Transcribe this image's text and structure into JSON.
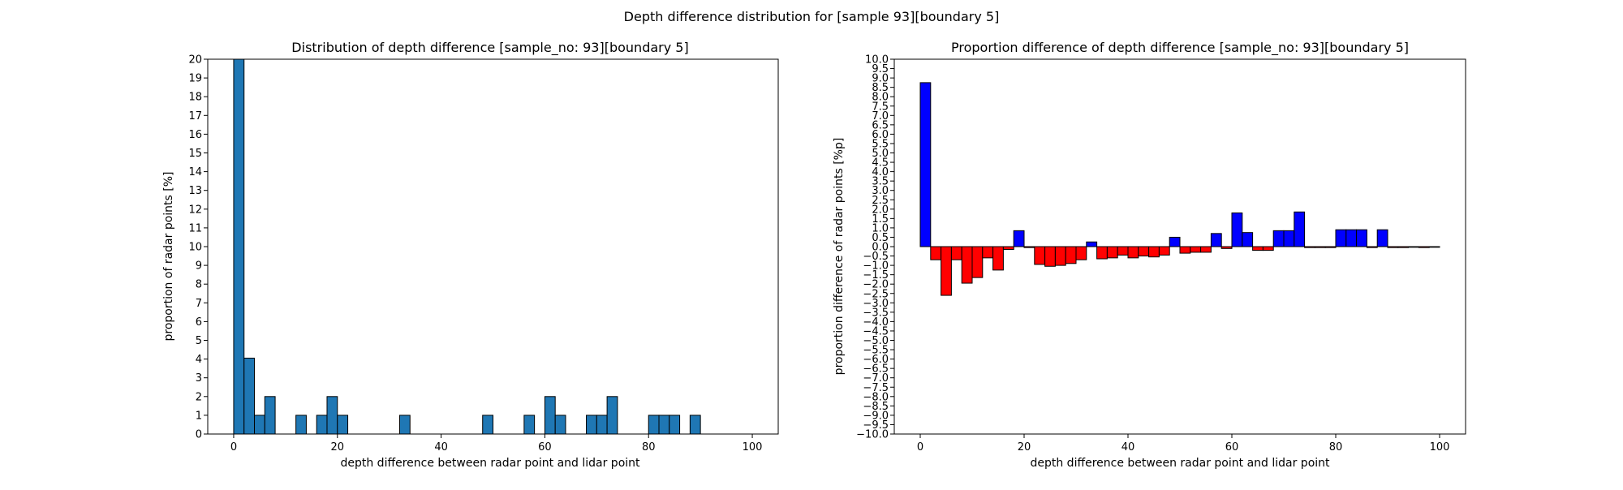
{
  "figure": {
    "suptitle": "Depth difference distribution for [sample 93][boundary 5]"
  },
  "chart_data": [
    {
      "type": "bar",
      "title": "Distribution of depth difference [sample_no: 93][boundary 5]",
      "xlabel": "depth difference between radar point and lidar point",
      "ylabel": "proportion of radar points [%]",
      "xlim": [
        -5,
        105
      ],
      "ylim": [
        0,
        20
      ],
      "xticks": [
        0,
        20,
        40,
        60,
        80,
        100
      ],
      "yticks": [
        0,
        1,
        2,
        3,
        4,
        5,
        6,
        7,
        8,
        9,
        10,
        11,
        12,
        13,
        14,
        15,
        16,
        17,
        18,
        19,
        20
      ],
      "bin_edges": [
        0,
        2,
        4,
        6,
        8,
        10,
        12,
        14,
        16,
        18,
        20,
        22,
        24,
        26,
        28,
        30,
        32,
        34,
        36,
        38,
        40,
        42,
        44,
        46,
        48,
        50,
        52,
        54,
        56,
        58,
        60,
        62,
        64,
        66,
        68,
        70,
        72,
        74,
        76,
        78,
        80,
        82,
        84,
        86,
        88,
        90,
        92,
        94,
        96,
        98,
        100
      ],
      "values": [
        20,
        4.05,
        1,
        2,
        0,
        0,
        1,
        0,
        1,
        2,
        1,
        0,
        0,
        0,
        0,
        0,
        1,
        0,
        0,
        0,
        0,
        0,
        0,
        0,
        1,
        0,
        0,
        0,
        1,
        0,
        2,
        1,
        0,
        0,
        1,
        1,
        2,
        0,
        0,
        0,
        1,
        1,
        1,
        0,
        1,
        0,
        0,
        0,
        0,
        0
      ],
      "bar_color": "#1f77b4",
      "edge_color": "#000000"
    },
    {
      "type": "bar",
      "title": "Proportion difference of depth difference [sample_no: 93][boundary 5]",
      "xlabel": "depth difference between radar point and lidar point",
      "ylabel": "proportion difference of radar points [%p]",
      "xlim": [
        -5,
        105
      ],
      "ylim": [
        -10,
        10
      ],
      "xticks": [
        0,
        20,
        40,
        60,
        80,
        100
      ],
      "yticks": [
        -10.0,
        -9.5,
        -9.0,
        -8.5,
        -8.0,
        -7.5,
        -7.0,
        -6.5,
        -6.0,
        -5.5,
        -5.0,
        -4.5,
        -4.0,
        -3.5,
        -3.0,
        -2.5,
        -2.0,
        -1.5,
        -1.0,
        -0.5,
        0.0,
        0.5,
        1.0,
        1.5,
        2.0,
        2.5,
        3.0,
        3.5,
        4.0,
        4.5,
        5.0,
        5.5,
        6.0,
        6.5,
        7.0,
        7.5,
        8.0,
        8.5,
        9.0,
        9.5,
        10.0
      ],
      "bin_edges": [
        0,
        2,
        4,
        6,
        8,
        10,
        12,
        14,
        16,
        18,
        20,
        22,
        24,
        26,
        28,
        30,
        32,
        34,
        36,
        38,
        40,
        42,
        44,
        46,
        48,
        50,
        52,
        54,
        56,
        58,
        60,
        62,
        64,
        66,
        68,
        70,
        72,
        74,
        76,
        78,
        80,
        82,
        84,
        86,
        88,
        90,
        92,
        94,
        96,
        98,
        100
      ],
      "values": [
        8.75,
        -0.7,
        -2.6,
        -0.7,
        -1.95,
        -1.65,
        -0.6,
        -1.25,
        -0.15,
        0.85,
        -0.05,
        -0.95,
        -1.05,
        -1.0,
        -0.9,
        -0.7,
        0.25,
        -0.65,
        -0.6,
        -0.45,
        -0.6,
        -0.5,
        -0.55,
        -0.45,
        0.5,
        -0.35,
        -0.3,
        -0.3,
        0.7,
        -0.1,
        1.8,
        0.75,
        -0.2,
        -0.2,
        0.85,
        0.85,
        1.85,
        -0.05,
        -0.05,
        -0.05,
        0.9,
        0.9,
        0.9,
        -0.05,
        0.9,
        -0.05,
        -0.05,
        0.0,
        -0.05,
        0.0
      ],
      "positive_color": "#0000ff",
      "negative_color": "#ff0000",
      "edge_color": "#000000"
    }
  ]
}
